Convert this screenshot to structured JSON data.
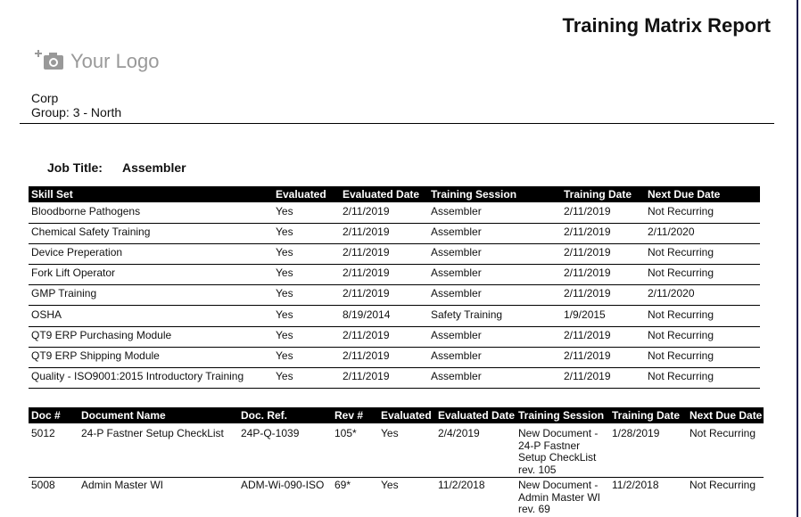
{
  "header": {
    "title": "Training Matrix Report",
    "logo": "Your Logo",
    "company": "Corp",
    "group": "Group: 3 - North"
  },
  "job": {
    "label": "Job Title:",
    "value": "Assembler"
  },
  "skills_table": {
    "columns": [
      "Skill Set",
      "Evaluated",
      "Evaluated Date",
      "Training Session",
      "Training Date",
      "Next Due Date"
    ],
    "rows": [
      [
        "Bloodborne Pathogens",
        "Yes",
        "2/11/2019",
        "Assembler",
        "2/11/2019",
        "Not Recurring"
      ],
      [
        "Chemical Safety Training",
        "Yes",
        "2/11/2019",
        "Assembler",
        "2/11/2019",
        "2/11/2020"
      ],
      [
        "Device Preperation",
        "Yes",
        "2/11/2019",
        "Assembler",
        "2/11/2019",
        "Not Recurring"
      ],
      [
        "Fork Lift Operator",
        "Yes",
        "2/11/2019",
        "Assembler",
        "2/11/2019",
        "Not Recurring"
      ],
      [
        "GMP Training",
        "Yes",
        "2/11/2019",
        "Assembler",
        "2/11/2019",
        "2/11/2020"
      ],
      [
        "OSHA",
        "Yes",
        "8/19/2014",
        "Safety Training",
        "1/9/2015",
        "Not Recurring"
      ],
      [
        "QT9 ERP Purchasing Module",
        "Yes",
        "2/11/2019",
        "Assembler",
        "2/11/2019",
        "Not Recurring"
      ],
      [
        "QT9 ERP Shipping Module",
        "Yes",
        "2/11/2019",
        "Assembler",
        "2/11/2019",
        "Not Recurring"
      ],
      [
        "Quality - ISO9001:2015 Introductory Training",
        "Yes",
        "2/11/2019",
        "Assembler",
        "2/11/2019",
        "Not Recurring"
      ]
    ]
  },
  "documents_table": {
    "columns": [
      "Doc #",
      "Document Name",
      "Doc. Ref.",
      "Rev #",
      "Evaluated",
      "Evaluated Date",
      "Training Session",
      "Training Date",
      "Next Due Date"
    ],
    "rows": [
      [
        "5012",
        "24-P Fastner Setup CheckList",
        "24P-Q-1039",
        "105*",
        "Yes",
        "2/4/2019",
        [
          "New Document -",
          "24-P Fastner",
          "Setup CheckList",
          "rev. 105"
        ],
        "1/28/2019",
        "Not Recurring"
      ],
      [
        "5008",
        "Admin Master WI",
        "ADM-Wi-090-ISO",
        "69*",
        "Yes",
        "11/2/2018",
        [
          "New Document -",
          "Admin Master WI",
          "rev. 69"
        ],
        "11/2/2018",
        "Not Recurring"
      ]
    ]
  }
}
